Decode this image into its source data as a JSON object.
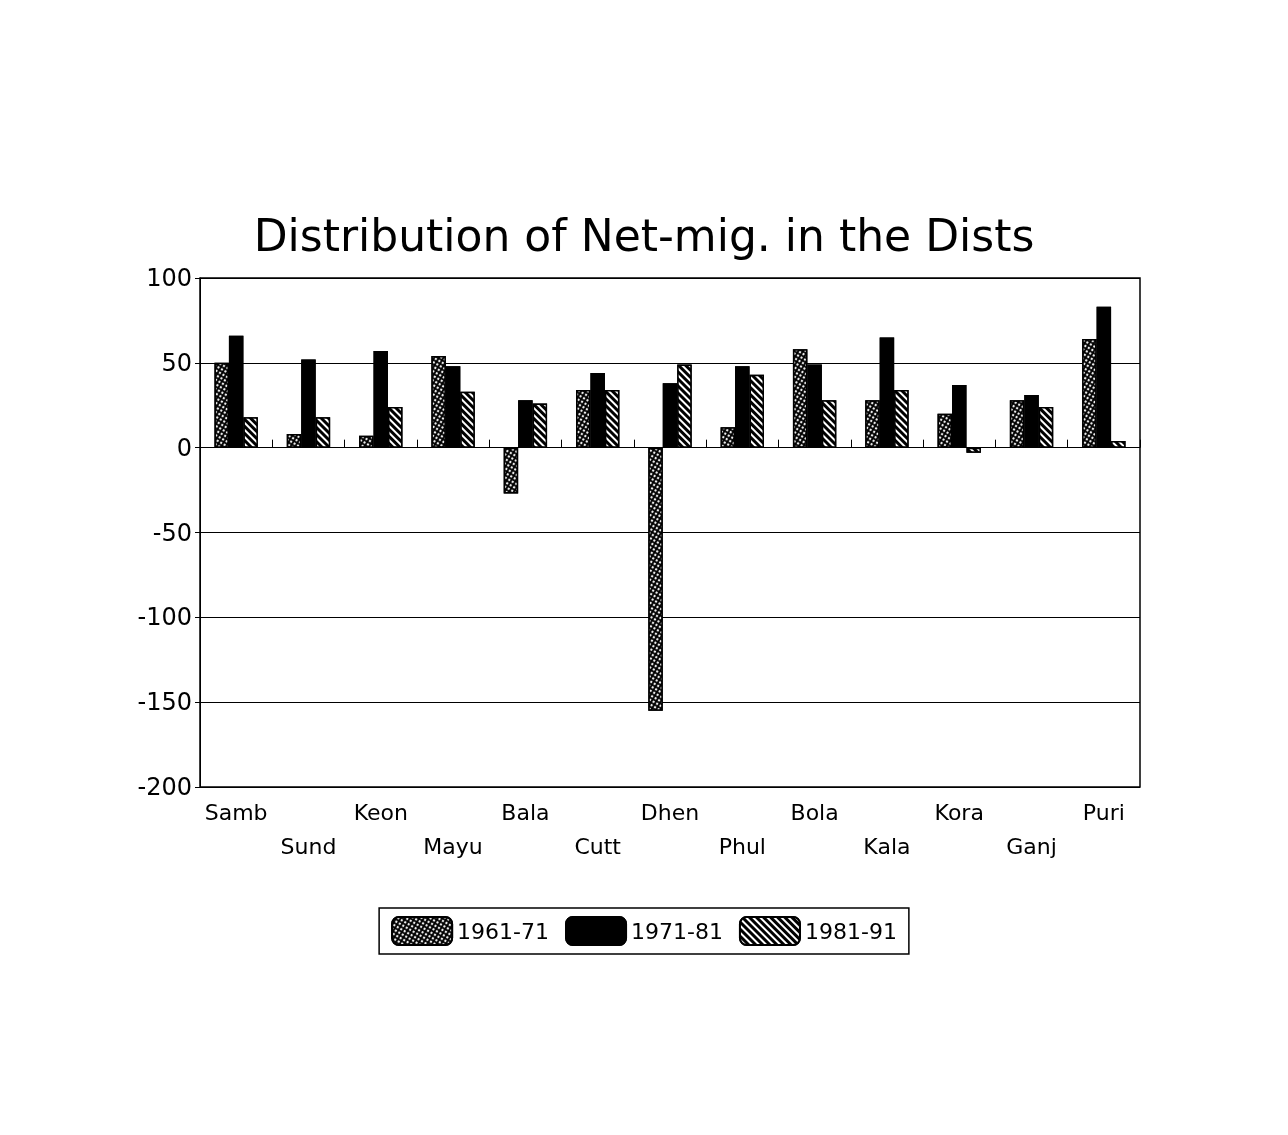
{
  "chart_data": {
    "type": "bar",
    "title": "Distribution of Net-mig. in the Dists",
    "categories": [
      "Samb",
      "Sund",
      "Keon",
      "Mayu",
      "Bala",
      "Cutt",
      "Dhen",
      "Phul",
      "Bola",
      "Kala",
      "Kora",
      "Ganj",
      "Puri"
    ],
    "series": [
      {
        "name": "1961-71",
        "color": "#000000",
        "values": [
          50,
          8,
          7,
          54,
          -27,
          34,
          -155,
          12,
          58,
          28,
          20,
          28,
          64
        ]
      },
      {
        "name": "1971-81",
        "color": "#000000",
        "values": [
          66,
          52,
          57,
          48,
          28,
          44,
          38,
          48,
          49,
          65,
          37,
          31,
          83
        ]
      },
      {
        "name": "1981-91",
        "color": "#000000",
        "values": [
          18,
          18,
          24,
          33,
          26,
          34,
          49,
          43,
          28,
          34,
          -3,
          24,
          4
        ]
      }
    ],
    "ylim": [
      -200,
      100
    ],
    "yticks": [
      -200,
      -150,
      -100,
      -50,
      0,
      50,
      100
    ],
    "grid": "y",
    "legend": "bottom"
  }
}
